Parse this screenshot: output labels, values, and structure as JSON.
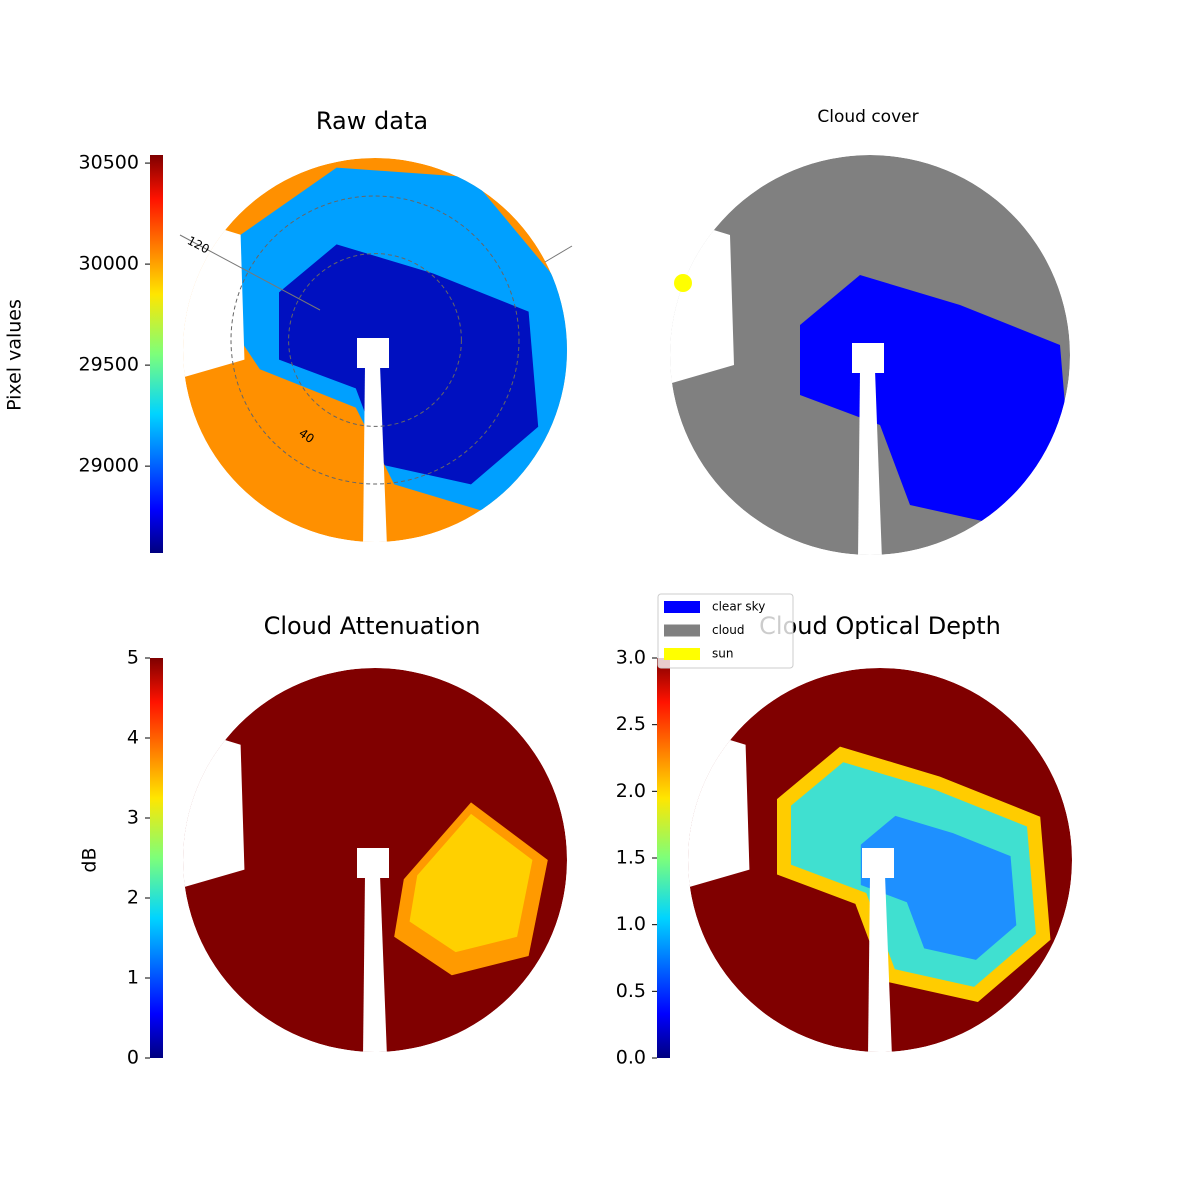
{
  "chart_data": [
    {
      "type": "image",
      "title": "Raw data",
      "colorbar_label": "Pixel values",
      "colormap": "jet",
      "ylim": [
        28570,
        30540
      ],
      "yticks": [
        29000,
        29500,
        30000,
        30500
      ],
      "annotations": [
        "120",
        "40"
      ]
    },
    {
      "type": "image",
      "title": "Cloud cover",
      "series": [
        {
          "name": "clear sky",
          "color": "#0000ff"
        },
        {
          "name": "cloud",
          "color": "#808080"
        },
        {
          "name": "sun",
          "color": "#ffff00"
        }
      ]
    },
    {
      "type": "image",
      "title": "Cloud Attenuation",
      "colorbar_label": "dB",
      "colormap": "jet",
      "ylim": [
        0,
        5
      ],
      "yticks": [
        0,
        1,
        2,
        3,
        4,
        5
      ]
    },
    {
      "type": "image",
      "title": "Cloud Optical Depth",
      "colormap": "jet",
      "ylim": [
        0,
        3
      ],
      "yticks": [
        {
          "value": 0,
          "label": "0.0"
        },
        0.5,
        {
          "value": 1,
          "label": "1.0"
        },
        1.5,
        {
          "value": 2,
          "label": "2.0"
        },
        2.5,
        {
          "value": 3,
          "label": "3.0"
        }
      ]
    }
  ]
}
